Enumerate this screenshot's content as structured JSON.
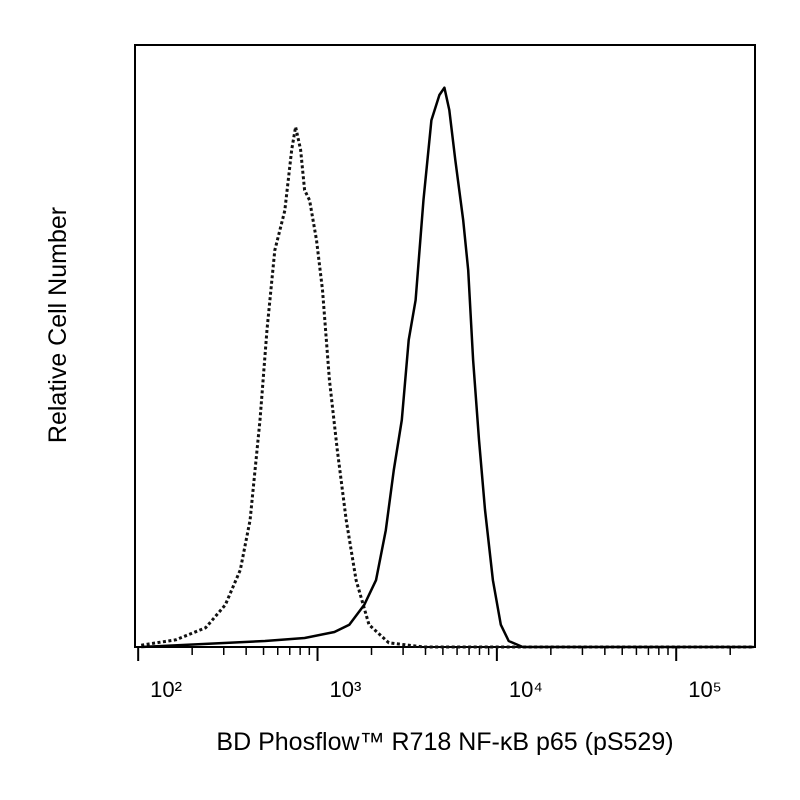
{
  "chart_data": {
    "type": "line",
    "xlabel": "BD Phosflow™ R718 NF-κB p65 (pS529)",
    "ylabel": "Relative Cell Number",
    "xscale": "log",
    "xlim": [
      96,
      275000
    ],
    "ylim": [
      0,
      100
    ],
    "xticks": [
      {
        "value": 100,
        "label": "10²"
      },
      {
        "value": 1000,
        "label": "10³"
      },
      {
        "value": 10000,
        "label": "10⁴"
      },
      {
        "value": 100000,
        "label": "10⁵"
      }
    ],
    "xminorticks": [
      200,
      300,
      400,
      500,
      600,
      700,
      800,
      900,
      2000,
      3000,
      4000,
      5000,
      6000,
      7000,
      8000,
      9000,
      20000,
      30000,
      40000,
      50000,
      60000,
      70000,
      80000,
      90000,
      200000
    ],
    "series": [
      {
        "color": "#111111",
        "dash": "dotted",
        "x": [
          104,
          162,
          238,
          306,
          371,
          421,
          478,
          523,
          578,
          657,
          718,
          755,
          805,
          847,
          903,
          987,
          1066,
          1165,
          1289,
          1445,
          1641,
          1936,
          2498,
          3899,
          270000
        ],
        "values": [
          0.3,
          1.2,
          3.2,
          7.0,
          12.8,
          21.1,
          37.7,
          52.7,
          65.9,
          72.5,
          82.6,
          86.4,
          82.6,
          75.9,
          74.2,
          67.6,
          59.3,
          44.4,
          32.7,
          21.1,
          11.1,
          3.7,
          0.7,
          0,
          0
        ]
      },
      {
        "color": "#000000",
        "dash": "solid",
        "x": [
          104,
          509,
          847,
          1242,
          1503,
          1820,
          2119,
          2404,
          2661,
          2949,
          3224,
          3524,
          3899,
          4317,
          4783,
          5096,
          5432,
          5862,
          6490,
          6918,
          7366,
          7954,
          8590,
          9508,
          10520,
          11640,
          13930,
          270000
        ],
        "values": [
          0,
          1.0,
          1.5,
          2.5,
          3.7,
          7.0,
          11.1,
          19.4,
          29.4,
          37.7,
          51.0,
          57.6,
          74.3,
          87.5,
          91.7,
          92.9,
          89.2,
          80.9,
          70.9,
          62.6,
          47.7,
          34.4,
          22.8,
          11.1,
          3.7,
          1.0,
          0,
          0
        ]
      }
    ]
  }
}
